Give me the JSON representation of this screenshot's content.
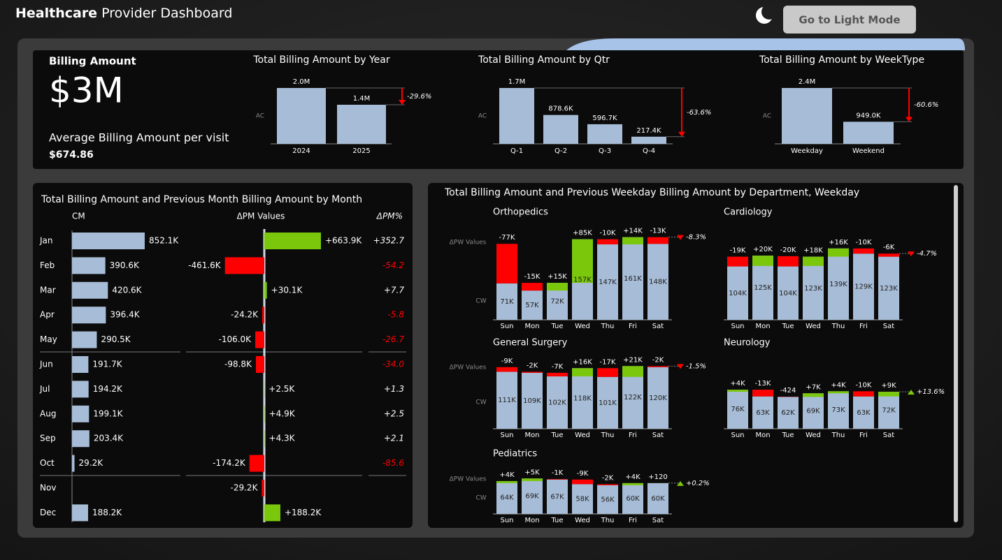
{
  "header": {
    "title_bold": "Healthcare",
    "title_rest": "Provider Dashboard",
    "button": "Go to Light Mode"
  },
  "kpi": {
    "label": "Billing Amount",
    "value": "$3M",
    "avg_label": "Average Billing Amount per visit",
    "avg_value": "$674.86"
  },
  "department_panel_title": "Total Billing Amount and Previous Weekday Billing Amount by Department, Weekday",
  "chart_data": [
    {
      "type": "bar",
      "title": "Total Billing Amount by Year",
      "y_label": "AC",
      "categories": [
        "2024",
        "2025"
      ],
      "values": [
        2000000,
        1400000
      ],
      "value_labels": [
        "2.0M",
        "1.4M"
      ],
      "color": "#a7bcd6",
      "variance": -29.6,
      "variance_label": "-29.6%",
      "positive_color": "#7ac70c",
      "negative_color": "#ff0000"
    },
    {
      "type": "bar",
      "title": "Total Billing Amount by Qtr",
      "y_label": "AC",
      "categories": [
        "Q-1",
        "Q-2",
        "Q-3",
        "Q-4"
      ],
      "values": [
        1700000,
        878600,
        596700,
        217400
      ],
      "value_labels": [
        "1.7M",
        "878.6K",
        "596.7K",
        "217.4K"
      ],
      "color": "#a7bcd6",
      "variance": -63.6,
      "variance_label": "-63.6%",
      "positive_color": "#7ac70c",
      "negative_color": "#ff0000"
    },
    {
      "type": "bar",
      "title": "Total Billing Amount by WeekType",
      "y_label": "AC",
      "categories": [
        "Weekday",
        "Weekend"
      ],
      "values": [
        2400000,
        949000
      ],
      "value_labels": [
        "2.4M",
        "949.0K"
      ],
      "color": "#a7bcd6",
      "variance": -60.6,
      "variance_label": "-60.6%",
      "positive_color": "#7ac70c",
      "negative_color": "#ff0000"
    },
    {
      "type": "variance_table",
      "title": "Total Billing Amount and Previous Month Billing Amount by Month",
      "categories": [
        "Jan",
        "Feb",
        "Mar",
        "Apr",
        "May",
        "Jun",
        "Jul",
        "Aug",
        "Sep",
        "Oct",
        "Nov",
        "Dec"
      ],
      "series": [
        {
          "name": "CM",
          "color": "#a7bcd6",
          "values": [
            852.1,
            390.6,
            420.6,
            396.4,
            290.5,
            191.7,
            194.2,
            199.1,
            203.4,
            29.2,
            null,
            188.2
          ],
          "value_labels": [
            "852.1K",
            "390.6K",
            "420.6K",
            "396.4K",
            "290.5K",
            "191.7K",
            "194.2K",
            "199.1K",
            "203.4K",
            "29.2K",
            null,
            "188.2K"
          ]
        },
        {
          "name": "ΔPM Values",
          "values": [
            663.9,
            -461.6,
            30.1,
            -24.2,
            -106.0,
            -98.8,
            2.5,
            4.9,
            4.3,
            -174.2,
            -29.2,
            188.2
          ],
          "value_labels": [
            "+663.9K",
            "-461.6K",
            "+30.1K",
            "-24.2K",
            "-106.0K",
            "-98.8K",
            "+2.5K",
            "+4.9K",
            "+4.3K",
            "-174.2K",
            "-29.2K",
            "+188.2K"
          ]
        },
        {
          "name": "ΔPM%",
          "values": [
            352.7,
            -54.2,
            7.7,
            -5.8,
            -26.7,
            -34.0,
            1.3,
            2.5,
            2.1,
            -85.6,
            null,
            null
          ],
          "value_labels": [
            "+352.7",
            "-54.2",
            "+7.7",
            "-5.8",
            "-26.7",
            "-34.0",
            "+1.3",
            "+2.5",
            "+2.1",
            "-85.6",
            null,
            null
          ]
        }
      ],
      "positive_color": "#7ac70c",
      "negative_color": "#ff0000"
    },
    {
      "type": "variance_column",
      "title": "Orthopedics",
      "delta_axis_label": "ΔPW Values",
      "y_label": "CW",
      "categories": [
        "Sun",
        "Mon",
        "Tue",
        "Wed",
        "Thu",
        "Fri",
        "Sat"
      ],
      "values": [
        71000,
        57000,
        72000,
        157000,
        147000,
        161000,
        148000
      ],
      "value_labels": [
        "71K",
        "57K",
        "72K",
        "157K",
        "147K",
        "161K",
        "148K"
      ],
      "deltas": [
        -77000,
        -15000,
        15000,
        85000,
        -10000,
        14000,
        -13000
      ],
      "delta_labels": [
        "-77K",
        "-15K",
        "+15K",
        "+85K",
        "-10K",
        "+14K",
        "-13K"
      ],
      "variance": -8.3,
      "variance_label": "-8.3%",
      "color": "#a7bcd6",
      "positive_color": "#7ac70c",
      "negative_color": "#ff0000"
    },
    {
      "type": "variance_column",
      "title": "Cardiology",
      "categories": [
        "Sun",
        "Mon",
        "Tue",
        "Wed",
        "Thu",
        "Fri",
        "Sat"
      ],
      "values": [
        104000,
        125000,
        104000,
        123000,
        139000,
        129000,
        123000
      ],
      "value_labels": [
        "104K",
        "125K",
        "104K",
        "123K",
        "139K",
        "129K",
        "123K"
      ],
      "deltas": [
        -19000,
        20000,
        -20000,
        18000,
        16000,
        -10000,
        -6000
      ],
      "delta_labels": [
        "-19K",
        "+20K",
        "-20K",
        "+18K",
        "+16K",
        "-10K",
        "-6K"
      ],
      "variance": -4.7,
      "variance_label": "-4.7%",
      "color": "#a7bcd6",
      "positive_color": "#7ac70c",
      "negative_color": "#ff0000"
    },
    {
      "type": "variance_column",
      "title": "General Surgery",
      "delta_axis_label": "ΔPW Values",
      "y_label": "CW",
      "categories": [
        "Sun",
        "Mon",
        "Tue",
        "Wed",
        "Thu",
        "Fri",
        "Sat"
      ],
      "values": [
        111000,
        109000,
        102000,
        118000,
        101000,
        122000,
        120000
      ],
      "value_labels": [
        "111K",
        "109K",
        "102K",
        "118K",
        "101K",
        "122K",
        "120K"
      ],
      "deltas": [
        -9000,
        -2000,
        -7000,
        16000,
        -17000,
        21000,
        -2000
      ],
      "delta_labels": [
        "-9K",
        "-2K",
        "-7K",
        "+16K",
        "-17K",
        "+21K",
        "-2K"
      ],
      "variance": -1.5,
      "variance_label": "-1.5%",
      "color": "#a7bcd6",
      "positive_color": "#7ac70c",
      "negative_color": "#ff0000"
    },
    {
      "type": "variance_column",
      "title": "Neurology",
      "categories": [
        "Sun",
        "Mon",
        "Tue",
        "Wed",
        "Thu",
        "Fri",
        "Sat"
      ],
      "values": [
        76000,
        63000,
        62000,
        69000,
        73000,
        63000,
        72000
      ],
      "value_labels": [
        "76K",
        "63K",
        "62K",
        "69K",
        "73K",
        "63K",
        "72K"
      ],
      "deltas": [
        4000,
        -13000,
        -424,
        7000,
        4000,
        -10000,
        9000
      ],
      "delta_labels": [
        "+4K",
        "-13K",
        "-424",
        "+7K",
        "+4K",
        "-10K",
        "+9K"
      ],
      "variance": 13.6,
      "variance_label": "+13.6%",
      "color": "#a7bcd6",
      "positive_color": "#7ac70c",
      "negative_color": "#ff0000"
    },
    {
      "type": "variance_column",
      "title": "Pediatrics",
      "delta_axis_label": "ΔPW Values",
      "y_label": "CW",
      "categories": [
        "Sun",
        "Mon",
        "Tue",
        "Wed",
        "Thu",
        "Fri",
        "Sat"
      ],
      "values": [
        64000,
        69000,
        67000,
        58000,
        56000,
        60000,
        60000
      ],
      "value_labels": [
        "64K",
        "69K",
        "67K",
        "58K",
        "56K",
        "60K",
        "60K"
      ],
      "deltas": [
        4000,
        5000,
        -1000,
        -9000,
        -2000,
        4000,
        120
      ],
      "delta_labels": [
        "+4K",
        "+5K",
        "-1K",
        "-9K",
        "-2K",
        "+4K",
        "+120"
      ],
      "variance": 0.2,
      "variance_label": "+0.2%",
      "color": "#a7bcd6",
      "positive_color": "#7ac70c",
      "negative_color": "#ff0000"
    }
  ]
}
